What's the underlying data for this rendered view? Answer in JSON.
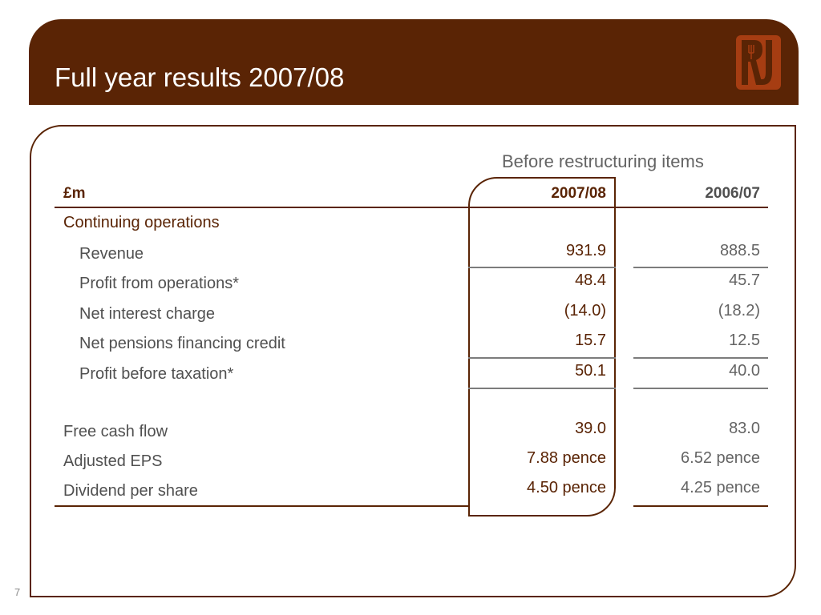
{
  "slide": {
    "title": "Full year results 2007/08",
    "page_number": "7",
    "brand_color": "#5a2405",
    "logo_icon": "restaurant-logo-icon"
  },
  "table": {
    "section_title": "Before restructuring items",
    "unit_label": "£m",
    "col_current": "2007/08",
    "col_previous": "2006/07",
    "group_label": "Continuing operations",
    "rows": [
      {
        "label": "Revenue",
        "current": "931.9",
        "previous": "888.5"
      },
      {
        "label": "Profit from operations*",
        "current": "48.4",
        "previous": "45.7"
      },
      {
        "label": "Net interest charge",
        "current": "(14.0)",
        "previous": "(18.2)"
      },
      {
        "label": "Net pensions financing credit",
        "current": "15.7",
        "previous": "12.5"
      },
      {
        "label": "Profit before taxation*",
        "current": "50.1",
        "previous": "40.0"
      },
      {
        "label": "Free cash flow",
        "current": "39.0",
        "previous": "83.0"
      },
      {
        "label": "Adjusted EPS",
        "current": "7.88 pence",
        "previous": "6.52 pence"
      },
      {
        "label": "Dividend per share",
        "current": "4.50 pence",
        "previous": "4.25 pence"
      }
    ]
  }
}
